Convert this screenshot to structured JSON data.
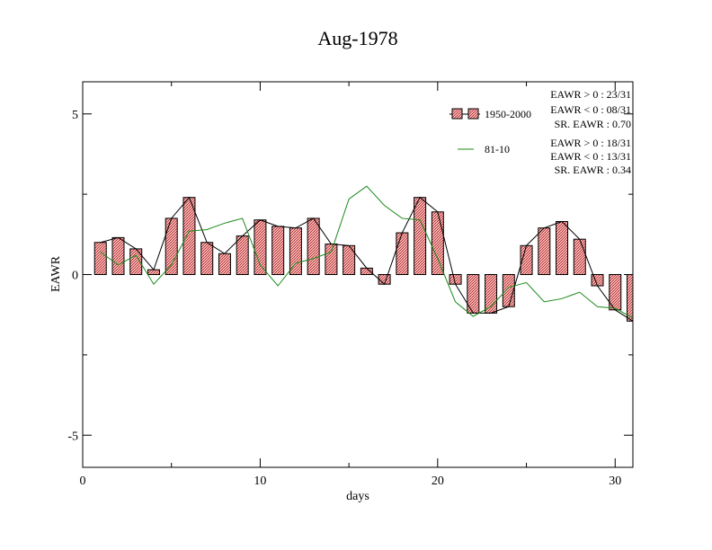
{
  "chart_data": {
    "type": "bar",
    "title": "Aug-1978",
    "xlabel": "days",
    "ylabel": "EAWR",
    "xlim": [
      0,
      31
    ],
    "ylim": [
      -6,
      6
    ],
    "x_ticks": [
      0,
      10,
      20,
      30
    ],
    "y_ticks": [
      5,
      0,
      -5
    ],
    "grid": false,
    "legend_position": "top-right",
    "x": [
      1,
      2,
      3,
      4,
      5,
      6,
      7,
      8,
      9,
      10,
      11,
      12,
      13,
      14,
      15,
      16,
      17,
      18,
      19,
      20,
      21,
      22,
      23,
      24,
      25,
      26,
      27,
      28,
      29,
      30,
      31
    ],
    "series": [
      {
        "name": "1950-2000",
        "kind": "bar",
        "color": "#e07070",
        "values": [
          1.0,
          1.15,
          0.8,
          0.15,
          1.75,
          2.4,
          1.0,
          0.65,
          1.2,
          1.7,
          1.5,
          1.45,
          1.75,
          0.95,
          0.9,
          0.2,
          -0.3,
          1.3,
          2.4,
          1.95,
          -0.3,
          -1.2,
          -1.2,
          -1.0,
          0.9,
          1.45,
          1.65,
          1.1,
          -0.35,
          -1.1,
          -1.45
        ]
      },
      {
        "name": "81-10",
        "kind": "line",
        "color": "#1a8a1a",
        "values": [
          0.7,
          0.3,
          0.6,
          -0.3,
          0.3,
          1.35,
          1.4,
          1.6,
          1.75,
          0.3,
          -0.35,
          0.35,
          0.5,
          0.7,
          2.35,
          2.75,
          2.15,
          1.75,
          1.7,
          0.5,
          -0.85,
          -1.3,
          -1.0,
          -0.4,
          -0.25,
          -0.85,
          -0.75,
          -0.55,
          -1.0,
          -1.05,
          -1.35
        ]
      }
    ],
    "annotations": {
      "group1": [
        "EAWR > 0 : 23/31",
        "EAWR < 0 : 08/31",
        "SR. EAWR :  0.70"
      ],
      "group2": [
        "EAWR > 0 : 18/31",
        "EAWR < 0 : 13/31",
        "SR. EAWR :  0.34"
      ]
    }
  }
}
